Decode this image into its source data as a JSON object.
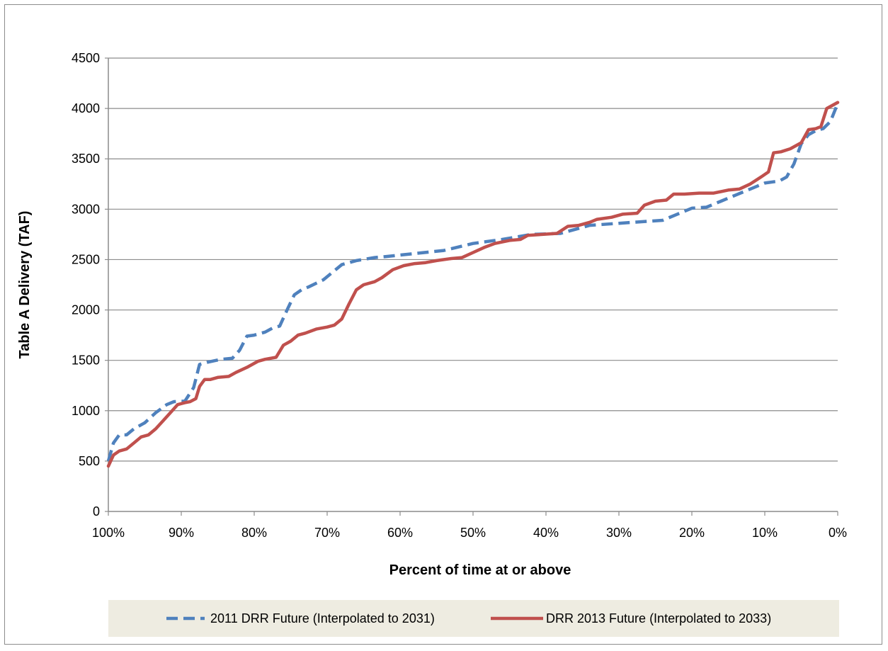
{
  "chart_data": {
    "type": "line",
    "title": "",
    "xlabel": "Percent of time at or above",
    "ylabel": "Table A Delivery (TAF)",
    "x_reversed": true,
    "xlim": [
      0,
      100
    ],
    "ylim": [
      0,
      4500
    ],
    "x_ticks": [
      100,
      90,
      80,
      70,
      60,
      50,
      40,
      30,
      20,
      10,
      0
    ],
    "x_tick_labels": [
      "100%",
      "90%",
      "80%",
      "70%",
      "60%",
      "50%",
      "40%",
      "30%",
      "20%",
      "10%",
      "0%"
    ],
    "y_ticks": [
      0,
      500,
      1000,
      1500,
      2000,
      2500,
      3000,
      3500,
      4000,
      4500
    ],
    "y_tick_labels": [
      "0",
      "500",
      "1000",
      "1500",
      "2000",
      "2500",
      "3000",
      "3500",
      "4000",
      "4500"
    ],
    "grid": "horizontal",
    "legend_position": "bottom",
    "legend_background": "#eeece1",
    "series": [
      {
        "name": "2011 DRR Future (Interpolated to 2031)",
        "color": "#4f81bd",
        "dash": "dashed",
        "points": [
          [
            100,
            500
          ],
          [
            99.3,
            680
          ],
          [
            98.5,
            760
          ],
          [
            97.5,
            760
          ],
          [
            96.5,
            820
          ],
          [
            95,
            880
          ],
          [
            93.5,
            980
          ],
          [
            92,
            1060
          ],
          [
            91,
            1090
          ],
          [
            89.5,
            1095
          ],
          [
            88.3,
            1230
          ],
          [
            87.5,
            1460
          ],
          [
            86.5,
            1480
          ],
          [
            84.5,
            1510
          ],
          [
            83,
            1520
          ],
          [
            82,
            1600
          ],
          [
            81,
            1740
          ],
          [
            80,
            1750
          ],
          [
            78.5,
            1780
          ],
          [
            77.5,
            1820
          ],
          [
            76.5,
            1840
          ],
          [
            75.5,
            2000
          ],
          [
            74.5,
            2150
          ],
          [
            73.5,
            2200
          ],
          [
            72.5,
            2230
          ],
          [
            70.5,
            2300
          ],
          [
            68,
            2450
          ],
          [
            66,
            2490
          ],
          [
            63.5,
            2520
          ],
          [
            62,
            2530
          ],
          [
            58,
            2560
          ],
          [
            54,
            2590
          ],
          [
            50,
            2660
          ],
          [
            46,
            2700
          ],
          [
            42,
            2750
          ],
          [
            38,
            2760
          ],
          [
            36,
            2800
          ],
          [
            34,
            2840
          ],
          [
            30,
            2860
          ],
          [
            26,
            2880
          ],
          [
            24,
            2890
          ],
          [
            22,
            2950
          ],
          [
            20,
            3010
          ],
          [
            18,
            3020
          ],
          [
            16,
            3080
          ],
          [
            14,
            3140
          ],
          [
            12,
            3200
          ],
          [
            10,
            3260
          ],
          [
            8,
            3280
          ],
          [
            7,
            3320
          ],
          [
            6,
            3450
          ],
          [
            5,
            3650
          ],
          [
            4,
            3740
          ],
          [
            3,
            3780
          ],
          [
            2,
            3800
          ],
          [
            1,
            3870
          ],
          [
            0,
            4050
          ]
        ]
      },
      {
        "name": "DRR 2013 Future (Interpolated to 2033)",
        "color": "#c0504d",
        "dash": "solid",
        "points": [
          [
            100,
            450
          ],
          [
            99.3,
            560
          ],
          [
            98.5,
            600
          ],
          [
            97.5,
            620
          ],
          [
            96.5,
            680
          ],
          [
            95.5,
            740
          ],
          [
            94.5,
            760
          ],
          [
            93.5,
            820
          ],
          [
            92.5,
            900
          ],
          [
            91.5,
            980
          ],
          [
            90.5,
            1060
          ],
          [
            89.5,
            1080
          ],
          [
            88.8,
            1090
          ],
          [
            88,
            1120
          ],
          [
            87.5,
            1240
          ],
          [
            86.8,
            1310
          ],
          [
            86,
            1310
          ],
          [
            85,
            1330
          ],
          [
            83.5,
            1340
          ],
          [
            82.5,
            1380
          ],
          [
            81,
            1430
          ],
          [
            79.5,
            1490
          ],
          [
            78.5,
            1510
          ],
          [
            77,
            1530
          ],
          [
            76,
            1650
          ],
          [
            75,
            1690
          ],
          [
            74,
            1750
          ],
          [
            73,
            1770
          ],
          [
            71.5,
            1810
          ],
          [
            70,
            1830
          ],
          [
            69,
            1850
          ],
          [
            68,
            1910
          ],
          [
            67,
            2060
          ],
          [
            66,
            2200
          ],
          [
            65,
            2250
          ],
          [
            63.5,
            2280
          ],
          [
            62.5,
            2320
          ],
          [
            61,
            2400
          ],
          [
            59.5,
            2440
          ],
          [
            58,
            2460
          ],
          [
            56.5,
            2470
          ],
          [
            55,
            2490
          ],
          [
            53,
            2510
          ],
          [
            51.5,
            2520
          ],
          [
            50,
            2570
          ],
          [
            48.5,
            2620
          ],
          [
            47,
            2660
          ],
          [
            45,
            2690
          ],
          [
            43.5,
            2700
          ],
          [
            42.5,
            2740
          ],
          [
            40.5,
            2750
          ],
          [
            38.5,
            2760
          ],
          [
            37,
            2830
          ],
          [
            35.5,
            2840
          ],
          [
            34,
            2870
          ],
          [
            33,
            2900
          ],
          [
            31,
            2920
          ],
          [
            29.5,
            2950
          ],
          [
            27.5,
            2960
          ],
          [
            26.5,
            3040
          ],
          [
            25,
            3080
          ],
          [
            23.5,
            3090
          ],
          [
            22.5,
            3150
          ],
          [
            21,
            3150
          ],
          [
            19,
            3160
          ],
          [
            17,
            3160
          ],
          [
            15,
            3190
          ],
          [
            13.5,
            3200
          ],
          [
            12,
            3250
          ],
          [
            10.5,
            3320
          ],
          [
            9.5,
            3370
          ],
          [
            8.8,
            3560
          ],
          [
            7.8,
            3570
          ],
          [
            6.5,
            3600
          ],
          [
            5,
            3660
          ],
          [
            4,
            3790
          ],
          [
            3,
            3800
          ],
          [
            2.3,
            3820
          ],
          [
            1.5,
            4000
          ],
          [
            0,
            4060
          ]
        ]
      }
    ]
  }
}
